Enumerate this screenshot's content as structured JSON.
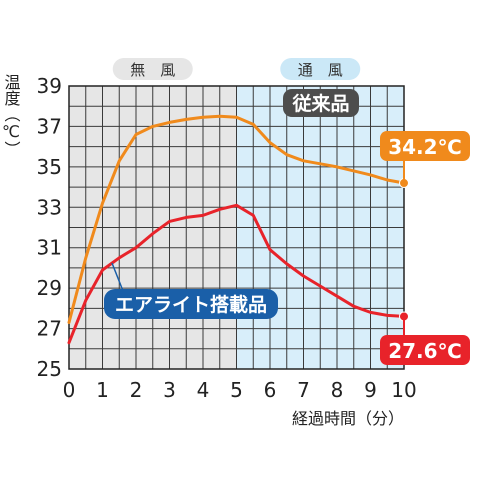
{
  "chart_data": {
    "type": "line",
    "xlabel": "経過時間（分）",
    "ylabel": "温度（℃）",
    "xlim": [
      0,
      10
    ],
    "ylim": [
      25,
      39
    ],
    "x_ticks": [
      0,
      1,
      2,
      3,
      4,
      5,
      6,
      7,
      8,
      9,
      10
    ],
    "y_ticks": [
      25,
      27,
      29,
      31,
      33,
      35,
      37,
      39
    ],
    "grid": true,
    "zones": [
      {
        "label": "無　風",
        "x_from": 0,
        "x_to": 5,
        "color": "#e6e6e6",
        "label_bg": "#e6e6e6"
      },
      {
        "label": "通　風",
        "x_from": 5,
        "x_to": 10,
        "color": "#d8eefa",
        "label_bg": "#cbe8f7"
      }
    ],
    "series": [
      {
        "name": "従来品",
        "color": "#f08a1c",
        "x": [
          0,
          0.5,
          1,
          1.5,
          2,
          2.5,
          3,
          3.5,
          4,
          4.5,
          5,
          5.5,
          6,
          6.5,
          7,
          7.5,
          8,
          8.5,
          9,
          9.5,
          10
        ],
        "y": [
          27.3,
          30.5,
          33.2,
          35.3,
          36.6,
          37.0,
          37.2,
          37.35,
          37.45,
          37.5,
          37.45,
          37.1,
          36.2,
          35.6,
          35.3,
          35.15,
          35.0,
          34.8,
          34.6,
          34.35,
          34.2
        ],
        "badge_color": "#4d4d4d",
        "end_label": "34.2℃",
        "end_label_color": "#f08a1c"
      },
      {
        "name": "エアライト搭載品",
        "color": "#e8232a",
        "x": [
          0,
          0.5,
          1,
          1.5,
          2,
          2.5,
          3,
          3.5,
          4,
          4.5,
          5,
          5.5,
          6,
          6.5,
          7,
          7.5,
          8,
          8.5,
          9,
          9.5,
          10
        ],
        "y": [
          26.3,
          28.4,
          29.9,
          30.5,
          31.0,
          31.7,
          32.3,
          32.5,
          32.6,
          32.9,
          33.1,
          32.6,
          30.9,
          30.2,
          29.6,
          29.1,
          28.6,
          28.1,
          27.8,
          27.65,
          27.6
        ],
        "badge_color": "#1a5fa8",
        "end_label": "27.6℃",
        "end_label_color": "#e8232a"
      }
    ]
  }
}
